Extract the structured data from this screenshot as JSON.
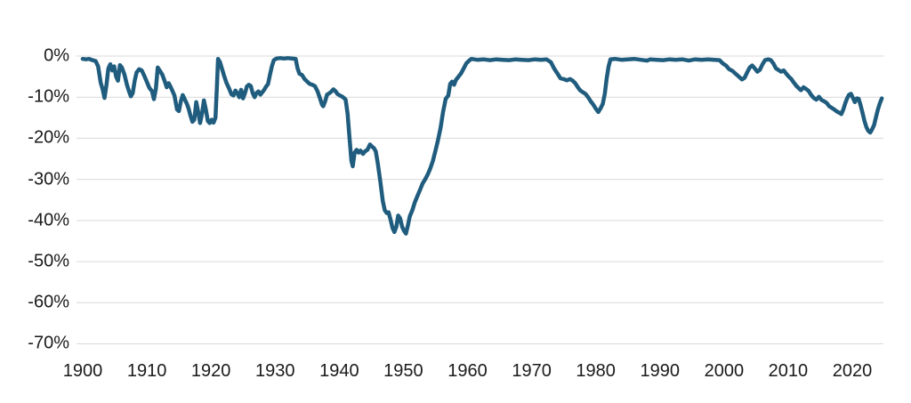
{
  "chart_data": {
    "type": "line",
    "title": "",
    "xlabel": "",
    "ylabel": "",
    "legend": "none",
    "grid": "horizontal",
    "line_color": "#1F5C7E",
    "grid_color": "#D9D9D9",
    "tick_label_color": "#1A1A1A",
    "background_color": "#FFFFFF",
    "y_ticks": [
      "0%",
      "-10%",
      "-20%",
      "-30%",
      "-40%",
      "-50%",
      "-60%",
      "-70%"
    ],
    "y_tick_values": [
      0,
      -10,
      -20,
      -30,
      -40,
      -50,
      -60,
      -70
    ],
    "x_ticks": [
      "1900",
      "1910",
      "1920",
      "1930",
      "1940",
      "1950",
      "1960",
      "1970",
      "1980",
      "1990",
      "2000",
      "2010",
      "2020"
    ],
    "x_tick_values": [
      1900,
      1910,
      1920,
      1930,
      1940,
      1950,
      1960,
      1970,
      1980,
      1990,
      2000,
      2010,
      2020
    ],
    "xlim": [
      1900,
      2025
    ],
    "ylim": [
      -70,
      0
    ],
    "series": [
      {
        "name": "drawdown",
        "points": [
          [
            1900.0,
            -0.7
          ],
          [
            1900.5,
            -0.8
          ],
          [
            1901.0,
            -0.7
          ],
          [
            1901.5,
            -1.0
          ],
          [
            1902.0,
            -1.2
          ],
          [
            1902.4,
            -2.5
          ],
          [
            1902.8,
            -6.5
          ],
          [
            1903.1,
            -8.0
          ],
          [
            1903.4,
            -10.2
          ],
          [
            1903.7,
            -7.0
          ],
          [
            1904.0,
            -3.0
          ],
          [
            1904.3,
            -2.0
          ],
          [
            1904.6,
            -3.5
          ],
          [
            1904.9,
            -2.5
          ],
          [
            1905.2,
            -5.0
          ],
          [
            1905.5,
            -6.0
          ],
          [
            1905.8,
            -2.2
          ],
          [
            1906.1,
            -2.8
          ],
          [
            1906.5,
            -4.5
          ],
          [
            1906.9,
            -7.0
          ],
          [
            1907.2,
            -8.5
          ],
          [
            1907.5,
            -9.8
          ],
          [
            1907.8,
            -9.0
          ],
          [
            1908.1,
            -6.0
          ],
          [
            1908.4,
            -4.0
          ],
          [
            1908.8,
            -3.2
          ],
          [
            1909.2,
            -3.5
          ],
          [
            1909.6,
            -4.8
          ],
          [
            1910.0,
            -6.3
          ],
          [
            1910.4,
            -7.8
          ],
          [
            1910.8,
            -8.5
          ],
          [
            1911.1,
            -10.5
          ],
          [
            1911.4,
            -8.0
          ],
          [
            1911.7,
            -2.8
          ],
          [
            1912.0,
            -3.5
          ],
          [
            1912.4,
            -4.5
          ],
          [
            1912.8,
            -6.2
          ],
          [
            1913.1,
            -7.6
          ],
          [
            1913.4,
            -6.6
          ],
          [
            1913.7,
            -7.5
          ],
          [
            1914.0,
            -8.5
          ],
          [
            1914.3,
            -9.6
          ],
          [
            1914.7,
            -13.0
          ],
          [
            1915.0,
            -13.4
          ],
          [
            1915.3,
            -11.0
          ],
          [
            1915.6,
            -9.5
          ],
          [
            1915.9,
            -10.5
          ],
          [
            1916.2,
            -11.5
          ],
          [
            1916.5,
            -12.7
          ],
          [
            1916.8,
            -14.5
          ],
          [
            1917.1,
            -16.0
          ],
          [
            1917.4,
            -15.5
          ],
          [
            1917.7,
            -11.2
          ],
          [
            1918.0,
            -13.5
          ],
          [
            1918.3,
            -16.3
          ],
          [
            1918.6,
            -14.0
          ],
          [
            1918.9,
            -10.8
          ],
          [
            1919.2,
            -13.0
          ],
          [
            1919.5,
            -15.8
          ],
          [
            1919.8,
            -16.3
          ],
          [
            1920.1,
            -15.5
          ],
          [
            1920.4,
            -16.2
          ],
          [
            1920.7,
            -15.0
          ],
          [
            1920.9,
            -8.0
          ],
          [
            1921.1,
            -0.7
          ],
          [
            1921.4,
            -1.5
          ],
          [
            1921.7,
            -3.0
          ],
          [
            1922.0,
            -4.6
          ],
          [
            1922.4,
            -6.5
          ],
          [
            1922.8,
            -7.8
          ],
          [
            1923.2,
            -9.3
          ],
          [
            1923.5,
            -9.6
          ],
          [
            1923.8,
            -8.4
          ],
          [
            1924.1,
            -9.0
          ],
          [
            1924.4,
            -10.0
          ],
          [
            1924.7,
            -8.2
          ],
          [
            1925.0,
            -10.3
          ],
          [
            1925.3,
            -9.0
          ],
          [
            1925.6,
            -7.4
          ],
          [
            1925.9,
            -7.0
          ],
          [
            1926.2,
            -7.3
          ],
          [
            1926.5,
            -9.0
          ],
          [
            1926.8,
            -10.0
          ],
          [
            1927.1,
            -9.0
          ],
          [
            1927.4,
            -8.6
          ],
          [
            1927.7,
            -9.4
          ],
          [
            1928.0,
            -8.8
          ],
          [
            1928.3,
            -8.2
          ],
          [
            1928.6,
            -7.4
          ],
          [
            1928.9,
            -6.8
          ],
          [
            1929.2,
            -4.5
          ],
          [
            1929.5,
            -2.5
          ],
          [
            1929.8,
            -1.0
          ],
          [
            1930.2,
            -0.6
          ],
          [
            1930.8,
            -0.5
          ],
          [
            1931.4,
            -0.6
          ],
          [
            1932.0,
            -0.5
          ],
          [
            1932.6,
            -0.6
          ],
          [
            1933.2,
            -0.7
          ],
          [
            1933.5,
            -3.0
          ],
          [
            1933.8,
            -4.3
          ],
          [
            1934.2,
            -4.6
          ],
          [
            1934.6,
            -5.6
          ],
          [
            1935.0,
            -6.2
          ],
          [
            1935.4,
            -6.8
          ],
          [
            1935.8,
            -7.0
          ],
          [
            1936.2,
            -7.3
          ],
          [
            1936.6,
            -8.5
          ],
          [
            1937.0,
            -10.3
          ],
          [
            1937.3,
            -11.8
          ],
          [
            1937.5,
            -12.2
          ],
          [
            1937.8,
            -11.0
          ],
          [
            1938.1,
            -9.4
          ],
          [
            1938.5,
            -9.0
          ],
          [
            1938.8,
            -8.6
          ],
          [
            1939.1,
            -8.1
          ],
          [
            1939.4,
            -8.5
          ],
          [
            1939.7,
            -9.2
          ],
          [
            1940.1,
            -9.6
          ],
          [
            1940.5,
            -9.9
          ],
          [
            1940.8,
            -10.3
          ],
          [
            1941.0,
            -10.6
          ],
          [
            1941.3,
            -14.0
          ],
          [
            1941.6,
            -20.0
          ],
          [
            1941.9,
            -25.5
          ],
          [
            1942.1,
            -26.8
          ],
          [
            1942.4,
            -23.5
          ],
          [
            1942.7,
            -22.8
          ],
          [
            1943.0,
            -23.5
          ],
          [
            1943.3,
            -23.0
          ],
          [
            1943.7,
            -23.8
          ],
          [
            1944.0,
            -23.2
          ],
          [
            1944.4,
            -22.8
          ],
          [
            1944.8,
            -21.5
          ],
          [
            1945.1,
            -22.0
          ],
          [
            1945.4,
            -22.4
          ],
          [
            1945.7,
            -23.2
          ],
          [
            1946.0,
            -26.0
          ],
          [
            1946.4,
            -30.5
          ],
          [
            1946.8,
            -35.3
          ],
          [
            1947.1,
            -37.5
          ],
          [
            1947.4,
            -38.2
          ],
          [
            1947.7,
            -38.0
          ],
          [
            1948.0,
            -39.8
          ],
          [
            1948.3,
            -41.8
          ],
          [
            1948.6,
            -42.8
          ],
          [
            1948.9,
            -41.5
          ],
          [
            1949.2,
            -38.8
          ],
          [
            1949.5,
            -39.5
          ],
          [
            1949.8,
            -41.5
          ],
          [
            1950.1,
            -42.5
          ],
          [
            1950.4,
            -43.2
          ],
          [
            1950.7,
            -41.2
          ],
          [
            1951.0,
            -39.0
          ],
          [
            1951.4,
            -37.5
          ],
          [
            1951.8,
            -35.5
          ],
          [
            1952.2,
            -34.0
          ],
          [
            1952.6,
            -32.5
          ],
          [
            1953.0,
            -31.0
          ],
          [
            1953.4,
            -30.0
          ],
          [
            1953.8,
            -28.8
          ],
          [
            1954.2,
            -27.3
          ],
          [
            1954.6,
            -25.5
          ],
          [
            1955.0,
            -23.0
          ],
          [
            1955.4,
            -20.5
          ],
          [
            1955.8,
            -17.5
          ],
          [
            1956.2,
            -13.5
          ],
          [
            1956.6,
            -10.4
          ],
          [
            1957.0,
            -9.6
          ],
          [
            1957.3,
            -6.8
          ],
          [
            1957.6,
            -6.2
          ],
          [
            1957.9,
            -7.0
          ],
          [
            1958.2,
            -5.8
          ],
          [
            1958.6,
            -5.0
          ],
          [
            1959.0,
            -4.2
          ],
          [
            1959.4,
            -3.0
          ],
          [
            1959.8,
            -1.8
          ],
          [
            1960.2,
            -1.2
          ],
          [
            1960.6,
            -0.7
          ],
          [
            1961.5,
            -0.9
          ],
          [
            1962.5,
            -0.8
          ],
          [
            1963.5,
            -1.0
          ],
          [
            1964.5,
            -0.8
          ],
          [
            1965.5,
            -0.9
          ],
          [
            1966.5,
            -1.0
          ],
          [
            1967.5,
            -0.8
          ],
          [
            1968.5,
            -0.9
          ],
          [
            1969.5,
            -1.0
          ],
          [
            1970.5,
            -0.8
          ],
          [
            1971.5,
            -0.9
          ],
          [
            1972.3,
            -0.8
          ],
          [
            1973.0,
            -1.5
          ],
          [
            1973.5,
            -3.0
          ],
          [
            1974.0,
            -4.2
          ],
          [
            1974.5,
            -5.4
          ],
          [
            1975.0,
            -5.6
          ],
          [
            1975.5,
            -5.9
          ],
          [
            1976.0,
            -5.6
          ],
          [
            1976.4,
            -6.0
          ],
          [
            1976.8,
            -6.6
          ],
          [
            1977.2,
            -7.6
          ],
          [
            1977.6,
            -8.4
          ],
          [
            1978.0,
            -8.8
          ],
          [
            1978.4,
            -9.2
          ],
          [
            1978.8,
            -10.0
          ],
          [
            1979.2,
            -11.0
          ],
          [
            1979.6,
            -11.8
          ],
          [
            1980.0,
            -12.8
          ],
          [
            1980.4,
            -13.6
          ],
          [
            1980.8,
            -12.6
          ],
          [
            1981.1,
            -11.6
          ],
          [
            1981.4,
            -9.2
          ],
          [
            1981.7,
            -5.5
          ],
          [
            1982.0,
            -2.5
          ],
          [
            1982.3,
            -0.8
          ],
          [
            1983.0,
            -0.7
          ],
          [
            1984.0,
            -0.9
          ],
          [
            1985.0,
            -0.8
          ],
          [
            1986.0,
            -0.7
          ],
          [
            1987.0,
            -0.9
          ],
          [
            1988.0,
            -1.1
          ],
          [
            1988.5,
            -0.8
          ],
          [
            1989.5,
            -0.9
          ],
          [
            1990.5,
            -1.0
          ],
          [
            1991.5,
            -0.8
          ],
          [
            1992.5,
            -0.9
          ],
          [
            1993.5,
            -0.8
          ],
          [
            1994.5,
            -1.1
          ],
          [
            1995.5,
            -0.8
          ],
          [
            1996.5,
            -0.9
          ],
          [
            1997.5,
            -0.8
          ],
          [
            1998.5,
            -0.9
          ],
          [
            1999.3,
            -1.0
          ],
          [
            1999.8,
            -1.8
          ],
          [
            2000.3,
            -2.3
          ],
          [
            2000.8,
            -3.2
          ],
          [
            2001.3,
            -3.6
          ],
          [
            2001.8,
            -4.3
          ],
          [
            2002.3,
            -5.0
          ],
          [
            2002.8,
            -5.7
          ],
          [
            2003.2,
            -5.3
          ],
          [
            2003.6,
            -4.0
          ],
          [
            2004.0,
            -2.8
          ],
          [
            2004.4,
            -2.3
          ],
          [
            2004.8,
            -3.0
          ],
          [
            2005.2,
            -3.8
          ],
          [
            2005.6,
            -3.3
          ],
          [
            2006.0,
            -2.0
          ],
          [
            2006.4,
            -1.0
          ],
          [
            2006.9,
            -0.8
          ],
          [
            2007.3,
            -1.0
          ],
          [
            2007.7,
            -1.8
          ],
          [
            2008.1,
            -3.0
          ],
          [
            2008.5,
            -3.4
          ],
          [
            2008.9,
            -3.8
          ],
          [
            2009.3,
            -3.5
          ],
          [
            2009.7,
            -4.3
          ],
          [
            2010.1,
            -5.0
          ],
          [
            2010.5,
            -5.6
          ],
          [
            2010.9,
            -6.5
          ],
          [
            2011.3,
            -7.3
          ],
          [
            2011.7,
            -7.9
          ],
          [
            2012.0,
            -8.3
          ],
          [
            2012.4,
            -7.6
          ],
          [
            2012.8,
            -8.0
          ],
          [
            2013.2,
            -8.5
          ],
          [
            2013.6,
            -9.5
          ],
          [
            2014.0,
            -10.2
          ],
          [
            2014.4,
            -10.6
          ],
          [
            2014.8,
            -9.9
          ],
          [
            2015.2,
            -10.7
          ],
          [
            2015.6,
            -11.0
          ],
          [
            2016.0,
            -11.4
          ],
          [
            2016.4,
            -12.2
          ],
          [
            2016.8,
            -12.6
          ],
          [
            2017.2,
            -13.0
          ],
          [
            2017.6,
            -13.5
          ],
          [
            2018.0,
            -13.8
          ],
          [
            2018.3,
            -14.1
          ],
          [
            2018.6,
            -13.0
          ],
          [
            2018.9,
            -11.5
          ],
          [
            2019.2,
            -10.3
          ],
          [
            2019.5,
            -9.4
          ],
          [
            2019.8,
            -9.2
          ],
          [
            2020.1,
            -10.2
          ],
          [
            2020.4,
            -11.2
          ],
          [
            2020.7,
            -10.3
          ],
          [
            2021.0,
            -10.4
          ],
          [
            2021.3,
            -12.0
          ],
          [
            2021.6,
            -13.8
          ],
          [
            2021.9,
            -15.8
          ],
          [
            2022.2,
            -17.3
          ],
          [
            2022.5,
            -18.2
          ],
          [
            2022.8,
            -18.6
          ],
          [
            2023.1,
            -17.8
          ],
          [
            2023.4,
            -16.8
          ],
          [
            2023.7,
            -14.8
          ],
          [
            2024.0,
            -13.0
          ],
          [
            2024.3,
            -11.5
          ],
          [
            2024.6,
            -10.3
          ]
        ]
      }
    ]
  }
}
